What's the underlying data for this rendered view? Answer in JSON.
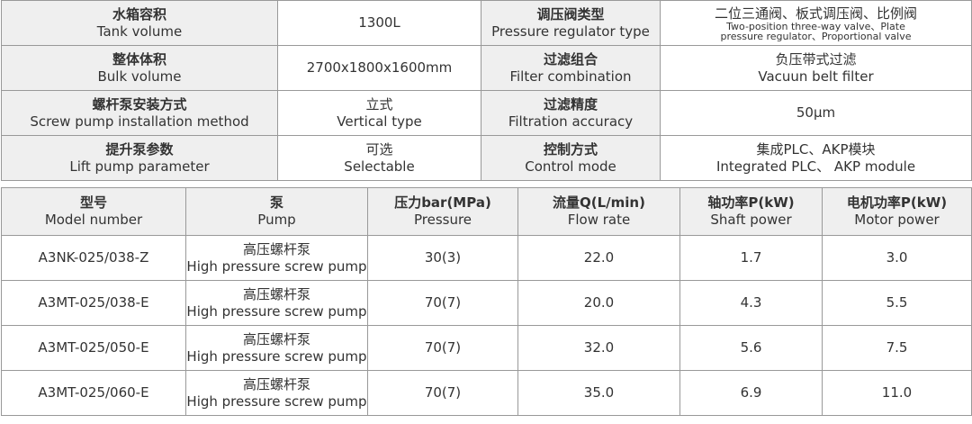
{
  "spec": {
    "rows": [
      [
        [
          "水箱容积",
          "Tank volume"
        ],
        [
          "1300L"
        ],
        [
          "调压阀类型",
          "Pressure regulator type"
        ],
        [
          "二位三通阀、板式调压阀、比例阀",
          "Two-position three-way valve、Plate",
          "pressure regulator、Proportional valve"
        ]
      ],
      [
        [
          "整体体积",
          "Bulk volume"
        ],
        [
          "2700x1800x1600mm"
        ],
        [
          "过滤组合",
          "Filter combination"
        ],
        [
          "负压带式过滤",
          "Vacuun belt filter"
        ]
      ],
      [
        [
          "螺杆泵安装方式",
          "Screw pump installation method"
        ],
        [
          "立式",
          "Vertical type"
        ],
        [
          "过滤精度",
          "Filtration accuracy"
        ],
        [
          "50μm"
        ]
      ],
      [
        [
          "提升泵参数",
          "Lift pump parameter"
        ],
        [
          "可选",
          "Selectable"
        ],
        [
          "控制方式",
          "Control mode"
        ],
        [
          "集成PLC、AKP模块",
          "Integrated PLC、 AKP module"
        ]
      ]
    ]
  },
  "models": {
    "header": [
      [
        "型号",
        "Model number"
      ],
      [
        "泵",
        "Pump"
      ],
      [
        "压力bar(MPa)",
        "Pressure"
      ],
      [
        "流量Q(L/min)",
        "Flow rate"
      ],
      [
        "轴功率P(kW)",
        "Shaft power"
      ],
      [
        "电机功率P(kW)",
        "Motor power"
      ]
    ],
    "rows": [
      [
        [
          "A3NK-025/038-Z"
        ],
        [
          "高压螺杆泵",
          "High pressure screw pump"
        ],
        [
          "30(3)"
        ],
        [
          "22.0"
        ],
        [
          "1.7"
        ],
        [
          "3.0"
        ]
      ],
      [
        [
          "A3MT-025/038-E"
        ],
        [
          "高压螺杆泵",
          "High pressure screw pump"
        ],
        [
          "70(7)"
        ],
        [
          "20.0"
        ],
        [
          "4.3"
        ],
        [
          "5.5"
        ]
      ],
      [
        [
          "A3MT-025/050-E"
        ],
        [
          "高压螺杆泵",
          "High pressure screw pump"
        ],
        [
          "70(7)"
        ],
        [
          "32.0"
        ],
        [
          "5.6"
        ],
        [
          "7.5"
        ]
      ],
      [
        [
          "A3MT-025/060-E"
        ],
        [
          "高压螺杆泵",
          "High pressure screw pump"
        ],
        [
          "70(7)"
        ],
        [
          "35.0"
        ],
        [
          "6.9"
        ],
        [
          "11.0"
        ]
      ]
    ]
  }
}
